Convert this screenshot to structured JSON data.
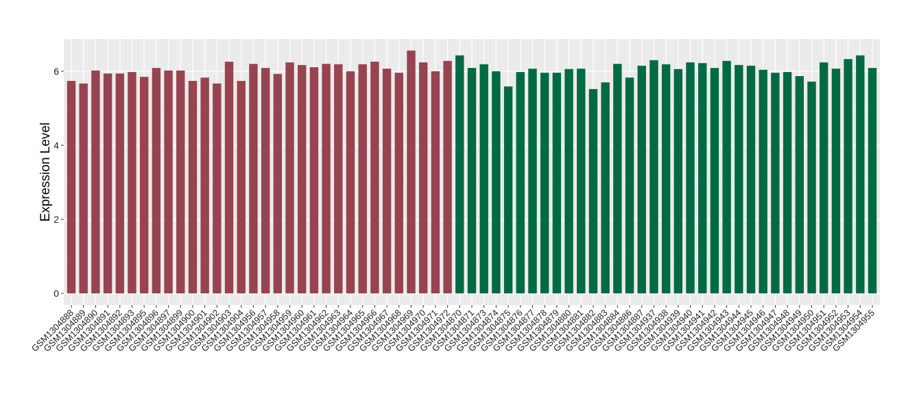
{
  "chart_data": {
    "type": "bar",
    "title": "",
    "xlabel": "",
    "ylabel": "Expression Level",
    "ylim": [
      0,
      6.9
    ],
    "yticks": [
      0,
      2,
      4,
      6
    ],
    "grid": true,
    "legend": "none",
    "colors": {
      "group1": "#984350",
      "group2": "#006a42",
      "panel": "#ebebeb",
      "grid": "#ffffff"
    },
    "categories": [
      "GSM1304888",
      "GSM1304889",
      "GSM1304890",
      "GSM1304891",
      "GSM1304892",
      "GSM1304893",
      "GSM1304895",
      "GSM1304896",
      "GSM1304897",
      "GSM1304899",
      "GSM1304900",
      "GSM1304901",
      "GSM1304902",
      "GSM1304903",
      "GSM1304904",
      "GSM1304956",
      "GSM1304957",
      "GSM1304958",
      "GSM1304959",
      "GSM1304960",
      "GSM1304961",
      "GSM1304962",
      "GSM1304963",
      "GSM1304964",
      "GSM1304965",
      "GSM1304966",
      "GSM1304967",
      "GSM1304968",
      "GSM1304969",
      "GSM1304970",
      "GSM1304971",
      "GSM1304972",
      "GSM1304870",
      "GSM1304871",
      "GSM1304873",
      "GSM1304874",
      "GSM1304875",
      "GSM1304876",
      "GSM1304877",
      "GSM1304878",
      "GSM1304879",
      "GSM1304880",
      "GSM1304881",
      "GSM1304882",
      "GSM1304883",
      "GSM1304884",
      "GSM1304886",
      "GSM1304887",
      "GSM1304937",
      "GSM1304938",
      "GSM1304939",
      "GSM1304940",
      "GSM1304941",
      "GSM1304942",
      "GSM1304943",
      "GSM1304944",
      "GSM1304945",
      "GSM1304946",
      "GSM1304947",
      "GSM1304948",
      "GSM1304949",
      "GSM1304950",
      "GSM1304951",
      "GSM1304952",
      "GSM1304953",
      "GSM1304954",
      "GSM1304955"
    ],
    "values": [
      5.74,
      5.67,
      6.02,
      5.94,
      5.94,
      5.98,
      5.85,
      6.09,
      6.02,
      6.02,
      5.74,
      5.83,
      5.67,
      6.26,
      5.74,
      6.2,
      6.09,
      5.93,
      6.24,
      6.17,
      6.11,
      6.2,
      6.19,
      6.0,
      6.19,
      6.26,
      6.07,
      5.96,
      6.56,
      6.24,
      6.0,
      6.28,
      6.43,
      6.09,
      6.19,
      6.0,
      5.59,
      5.98,
      6.07,
      5.96,
      5.96,
      6.06,
      6.07,
      5.52,
      5.7,
      6.2,
      5.83,
      6.15,
      6.3,
      6.19,
      6.06,
      6.24,
      6.22,
      6.09,
      6.28,
      6.17,
      6.15,
      6.04,
      5.96,
      5.98,
      5.87,
      5.72,
      6.24,
      6.07,
      6.33,
      6.43,
      6.09
    ],
    "groups": [
      "group1",
      "group1",
      "group1",
      "group1",
      "group1",
      "group1",
      "group1",
      "group1",
      "group1",
      "group1",
      "group1",
      "group1",
      "group1",
      "group1",
      "group1",
      "group1",
      "group1",
      "group1",
      "group1",
      "group1",
      "group1",
      "group1",
      "group1",
      "group1",
      "group1",
      "group1",
      "group1",
      "group1",
      "group1",
      "group1",
      "group1",
      "group1",
      "group2",
      "group2",
      "group2",
      "group2",
      "group2",
      "group2",
      "group2",
      "group2",
      "group2",
      "group2",
      "group2",
      "group2",
      "group2",
      "group2",
      "group2",
      "group2",
      "group2",
      "group2",
      "group2",
      "group2",
      "group2",
      "group2",
      "group2",
      "group2",
      "group2",
      "group2",
      "group2",
      "group2",
      "group2",
      "group2",
      "group2",
      "group2",
      "group2",
      "group2",
      "group2"
    ]
  }
}
